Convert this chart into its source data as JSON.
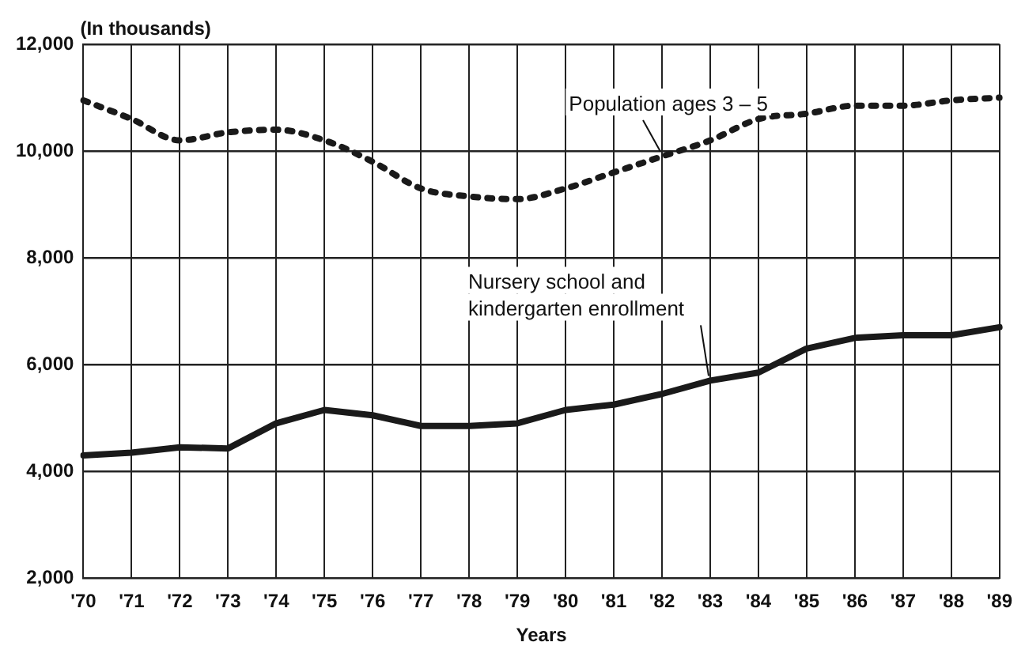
{
  "chart_data": {
    "type": "line",
    "ylabel": "(In thousands)",
    "xlabel": "Years",
    "categories": [
      "'70",
      "'71",
      "'72",
      "'73",
      "'74",
      "'75",
      "'76",
      "'77",
      "'78",
      "'79",
      "'80",
      "'81",
      "'82",
      "'83",
      "'84",
      "'85",
      "'86",
      "'87",
      "'88",
      "'89"
    ],
    "series": [
      {
        "name": "Population ages 3 – 5",
        "color": "#1a1a1a",
        "line_style": "dotted",
        "values": [
          10950,
          10600,
          10200,
          10350,
          10400,
          10200,
          9800,
          9300,
          9150,
          9100,
          9300,
          9600,
          9900,
          10200,
          10600,
          10700,
          10850,
          10850,
          10950,
          11000
        ]
      },
      {
        "name": "Nursery school and kindergarten enrollment",
        "color": "#1a1a1a",
        "line_style": "solid",
        "values": [
          4300,
          4350,
          4450,
          4430,
          4900,
          5150,
          5050,
          4850,
          4850,
          4900,
          5150,
          5250,
          5450,
          5700,
          5850,
          6300,
          6500,
          6550,
          6550,
          6700
        ]
      }
    ],
    "ylim": [
      2000,
      12000
    ],
    "yticks": [
      {
        "value": 2000,
        "label": "2,000"
      },
      {
        "value": 4000,
        "label": "4,000"
      },
      {
        "value": 6000,
        "label": "6,000"
      },
      {
        "value": 8000,
        "label": "8,000"
      },
      {
        "value": 10000,
        "label": "10,000"
      },
      {
        "value": 12000,
        "label": "12,000"
      }
    ],
    "grid": true,
    "legend": false,
    "marker": "none"
  }
}
